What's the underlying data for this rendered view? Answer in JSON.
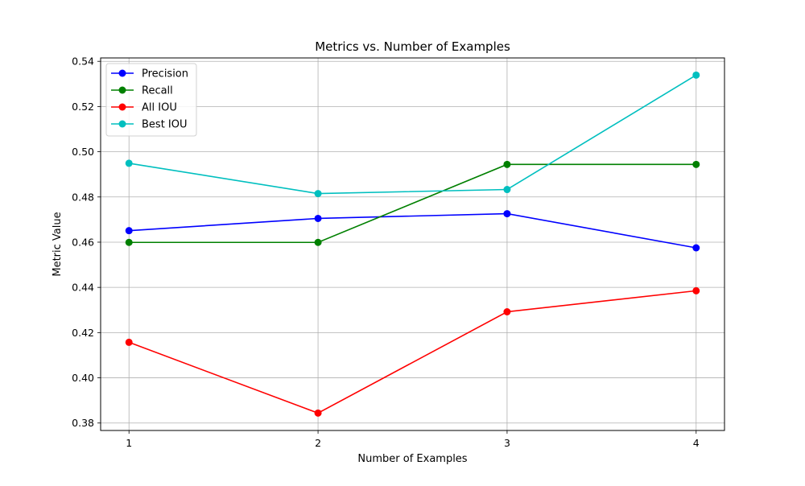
{
  "chart_data": {
    "type": "line",
    "title": "Metrics vs. Number of Examples",
    "xlabel": "Number of Examples",
    "ylabel": "Metric Value",
    "x": [
      1,
      2,
      3,
      4
    ],
    "xticks": [
      "1",
      "2",
      "3",
      "4"
    ],
    "xlim": [
      0.85,
      4.15
    ],
    "yticks": [
      "0.38",
      "0.40",
      "0.42",
      "0.44",
      "0.46",
      "0.48",
      "0.50",
      "0.52",
      "0.54"
    ],
    "ylim": [
      0.3767,
      0.5415
    ],
    "grid": true,
    "legend_position": "upper-left",
    "series": [
      {
        "name": "Precision",
        "color": "#0000ff",
        "values": [
          0.4651,
          0.4705,
          0.4726,
          0.4575
        ]
      },
      {
        "name": "Recall",
        "color": "#008000",
        "values": [
          0.4599,
          0.4599,
          0.4944,
          0.4944
        ]
      },
      {
        "name": "All IOU",
        "color": "#ff0000",
        "values": [
          0.4157,
          0.3844,
          0.4292,
          0.4385
        ]
      },
      {
        "name": "Best IOU",
        "color": "#00bfbf",
        "values": [
          0.4949,
          0.4815,
          0.4833,
          0.5339
        ]
      }
    ]
  }
}
